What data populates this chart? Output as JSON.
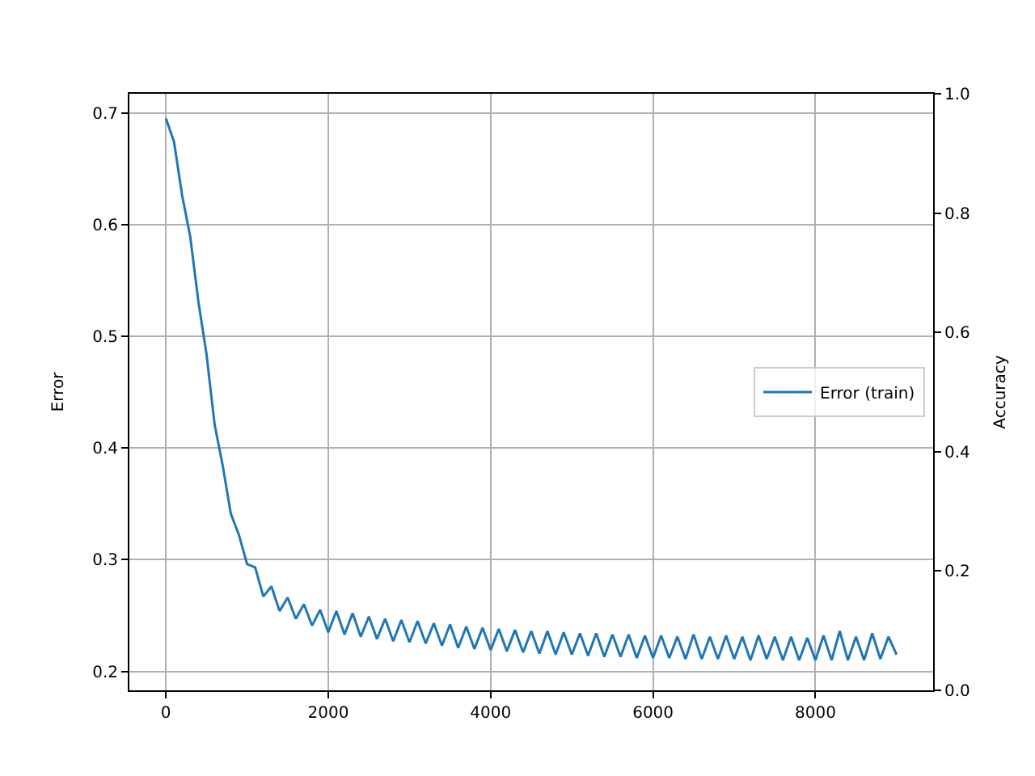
{
  "chart_data": {
    "type": "line",
    "ylabel": "Error",
    "y2label": "Accuracy",
    "x": [
      0,
      100,
      200,
      300,
      400,
      500,
      600,
      700,
      800,
      900,
      1000,
      1100,
      1200,
      1300,
      1400,
      1500,
      1600,
      1700,
      1800,
      1900,
      2000,
      2100,
      2200,
      2300,
      2400,
      2500,
      2600,
      2700,
      2800,
      2900,
      3000,
      3100,
      3200,
      3300,
      3400,
      3500,
      3600,
      3700,
      3800,
      3900,
      4000,
      4100,
      4200,
      4300,
      4400,
      4500,
      4600,
      4700,
      4800,
      4900,
      5000,
      5100,
      5200,
      5300,
      5400,
      5500,
      5600,
      5700,
      5800,
      5900,
      6000,
      6100,
      6200,
      6300,
      6400,
      6500,
      6600,
      6700,
      6800,
      6900,
      7000,
      7100,
      7200,
      7300,
      7400,
      7500,
      7600,
      7700,
      7800,
      7900,
      8000,
      8100,
      8200,
      8300,
      8400,
      8500,
      8600,
      8700,
      8800,
      8900,
      9000
    ],
    "series": [
      {
        "name": "Error (train)",
        "color": "#1f77b4",
        "values": [
          0.695,
          0.674,
          0.626,
          0.589,
          0.531,
          0.484,
          0.421,
          0.384,
          0.341,
          0.322,
          0.296,
          0.293,
          0.267,
          0.276,
          0.254,
          0.266,
          0.247,
          0.26,
          0.241,
          0.255,
          0.235,
          0.254,
          0.233,
          0.252,
          0.231,
          0.249,
          0.229,
          0.247,
          0.227,
          0.246,
          0.226,
          0.245,
          0.225,
          0.243,
          0.223,
          0.242,
          0.221,
          0.24,
          0.22,
          0.239,
          0.219,
          0.238,
          0.218,
          0.237,
          0.217,
          0.236,
          0.216,
          0.236,
          0.215,
          0.235,
          0.215,
          0.234,
          0.214,
          0.234,
          0.213,
          0.233,
          0.213,
          0.233,
          0.212,
          0.232,
          0.212,
          0.232,
          0.212,
          0.231,
          0.211,
          0.233,
          0.211,
          0.231,
          0.211,
          0.232,
          0.211,
          0.231,
          0.21,
          0.232,
          0.211,
          0.231,
          0.21,
          0.231,
          0.21,
          0.23,
          0.21,
          0.232,
          0.21,
          0.236,
          0.21,
          0.231,
          0.21,
          0.234,
          0.211,
          0.231,
          0.215
        ]
      }
    ],
    "xlim": [
      -450,
      9450
    ],
    "xticks": [
      0,
      2000,
      4000,
      6000,
      8000
    ],
    "ylim": [
      0.183,
      0.717
    ],
    "yticks": [
      0.2,
      0.3,
      0.4,
      0.5,
      0.6,
      0.7
    ],
    "y2lim": [
      0,
      1
    ],
    "y2ticks": [
      {
        "value": 0,
        "label": "0.0"
      },
      0.2,
      0.4,
      0.6,
      0.8,
      {
        "value": 1,
        "label": "1.0"
      }
    ],
    "grid": true,
    "legend": "right",
    "marker": "none",
    "line_style": "solid"
  }
}
